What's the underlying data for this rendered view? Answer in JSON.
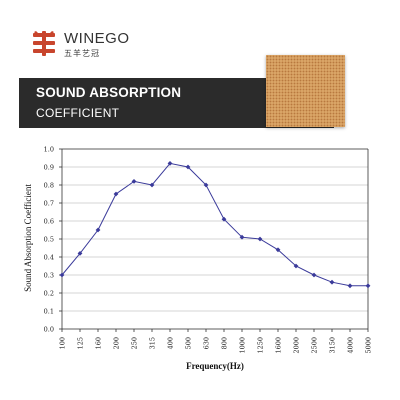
{
  "brand": {
    "name": "WINEGO",
    "subtitle": "五羊艺冠",
    "logo_icon": "sheep-character-logo-icon",
    "logo_color": "#c8452d"
  },
  "banner": {
    "title": "SOUND ABSORPTION",
    "subtitle": "COEFFICIENT",
    "background": "#2b2b2b"
  },
  "product_image": "perforated-wood-acoustic-panel",
  "chart_data": {
    "type": "line",
    "title": "",
    "xlabel": "Frequency(Hz)",
    "ylabel": "Sound Absorption Coefficient",
    "categories": [
      "100",
      "125",
      "160",
      "200",
      "250",
      "315",
      "400",
      "500",
      "630",
      "800",
      "1000",
      "1250",
      "1600",
      "2000",
      "2500",
      "3150",
      "4000",
      "5000"
    ],
    "series": [
      {
        "values": [
          0.3,
          0.42,
          0.55,
          0.75,
          0.82,
          0.8,
          0.92,
          0.9,
          0.8,
          0.61,
          0.51,
          0.5,
          0.44,
          0.35,
          0.3,
          0.26,
          0.24,
          0.24
        ]
      }
    ],
    "ylim": [
      0,
      1.0
    ],
    "yticks": [
      "0.0",
      "0.1",
      "0.2",
      "0.3",
      "0.4",
      "0.5",
      "0.6",
      "0.7",
      "0.8",
      "0.9",
      "1.0"
    ],
    "grid": "horizontal",
    "line_color": "#3a3a9a",
    "marker": "diamond",
    "x_tick_rotation": "vertical"
  }
}
